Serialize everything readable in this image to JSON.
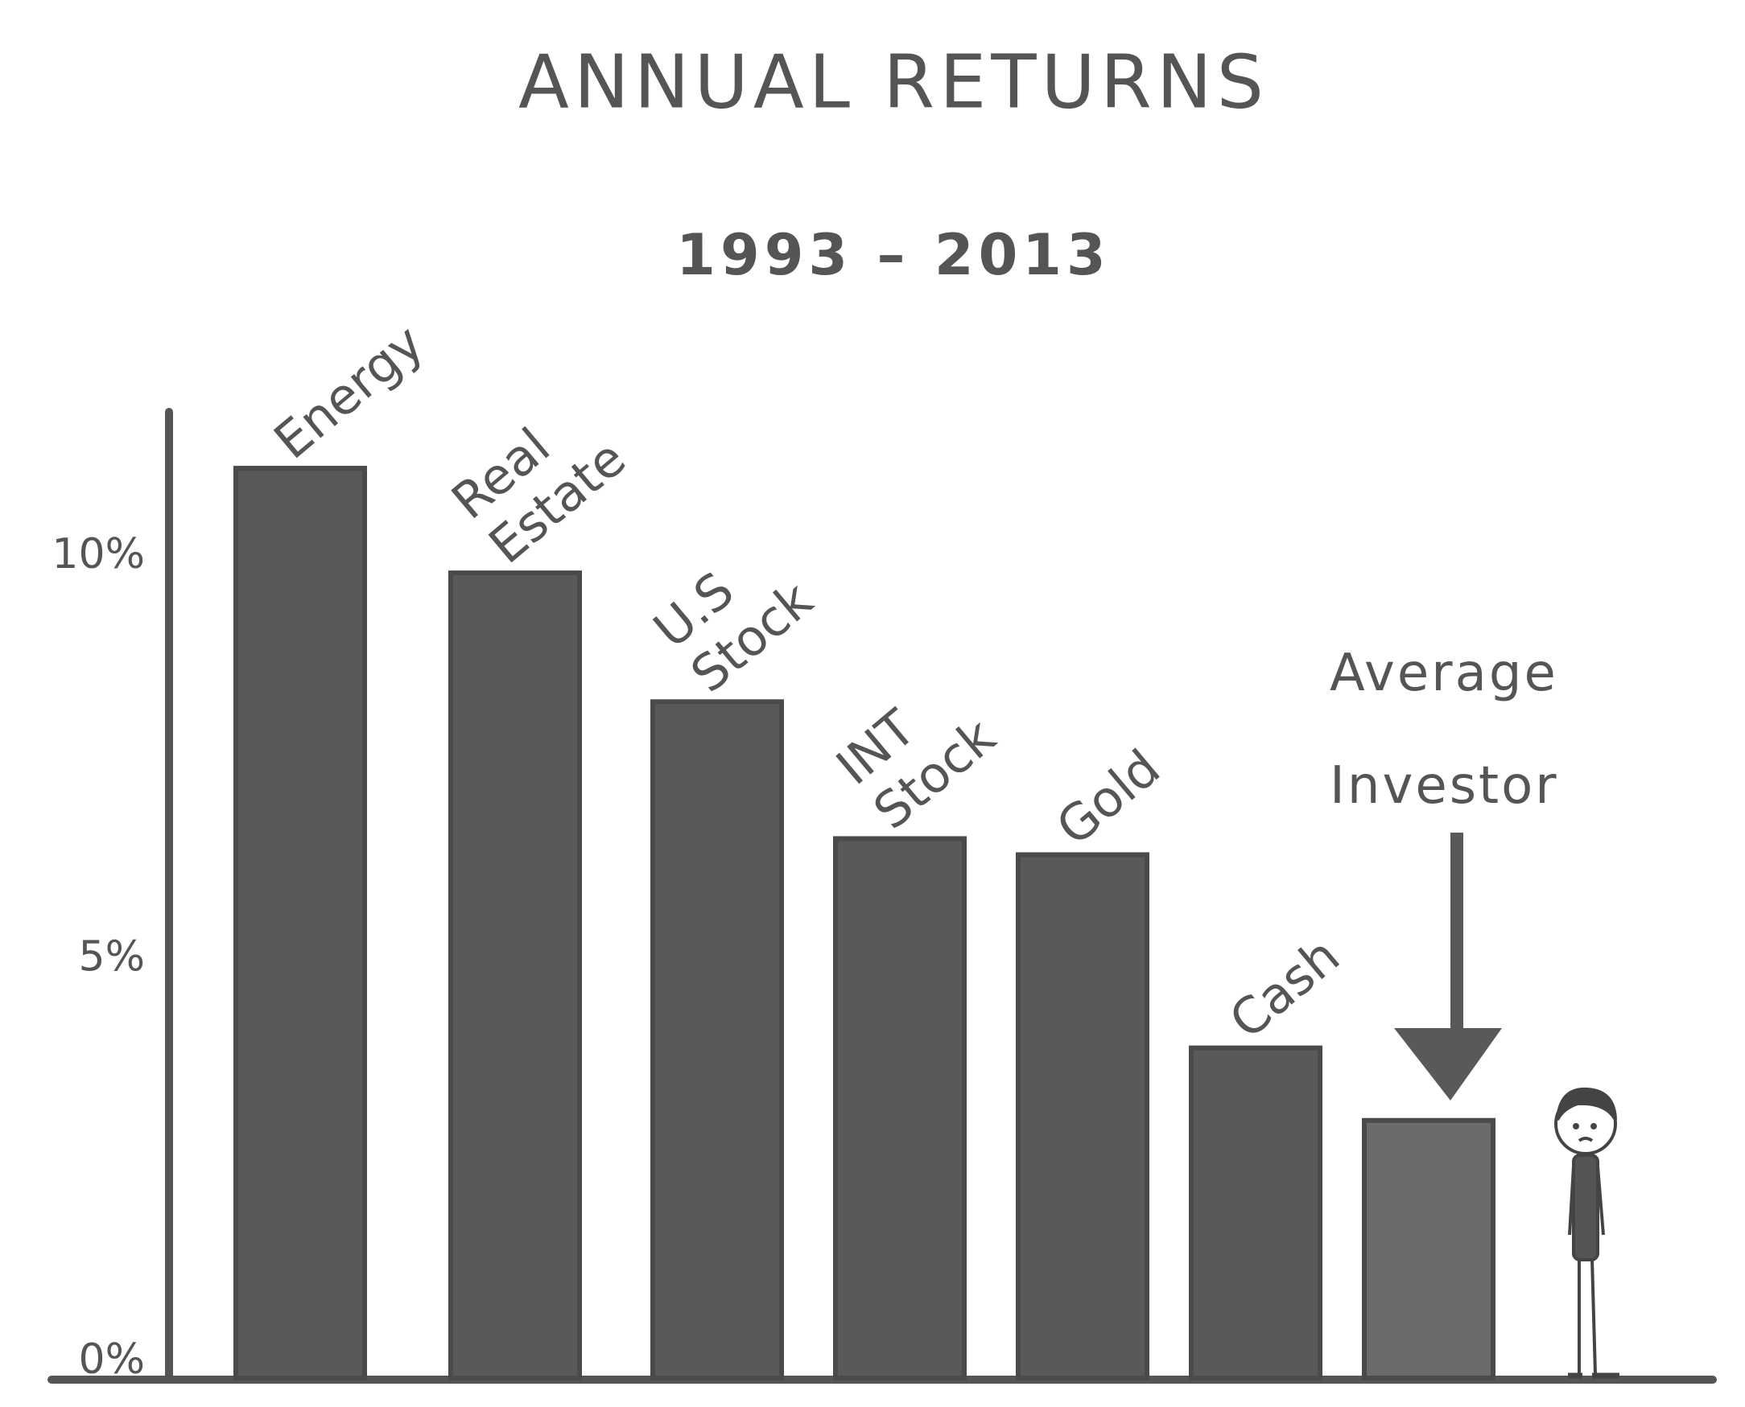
{
  "chart_data": {
    "type": "bar",
    "title": "ANNUAL RETURNS",
    "subtitle": "1993 – 2013",
    "categories": [
      "Energy",
      "Real Estate",
      "U.S Stock",
      "INT Stock",
      "Gold",
      "Cash",
      "Average Investor"
    ],
    "values": [
      11.3,
      10.0,
      8.4,
      6.7,
      6.5,
      4.1,
      3.2
    ],
    "colors": [
      "#595959",
      "#595959",
      "#595959",
      "#595959",
      "#595959",
      "#595959",
      "#6b6b6b"
    ],
    "ylim": [
      0,
      12
    ],
    "yticks": [
      {
        "value": 0,
        "label": "0%"
      },
      {
        "value": 5,
        "label": "5%"
      },
      {
        "value": 10,
        "label": "10%"
      }
    ],
    "grid": false
  }
}
